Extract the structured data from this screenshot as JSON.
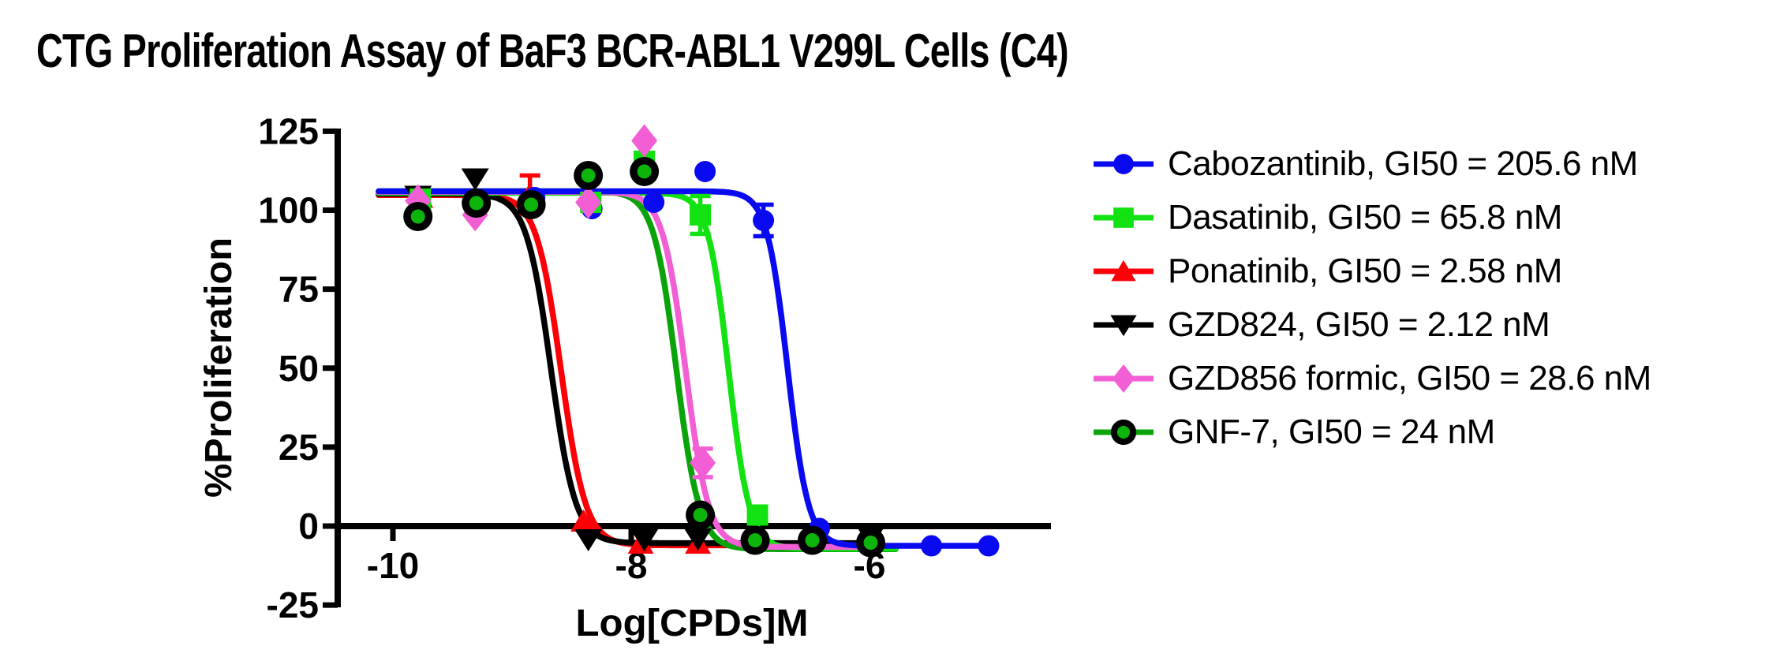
{
  "title": "CTG Proliferation Assay of BaF3 BCR-ABL1 V299L Cells (C4)",
  "legend": {
    "items": [
      {
        "label": "Cabozantinib, GI50 = 205.6 nM"
      },
      {
        "label": "Dasatinib, GI50 = 65.8 nM"
      },
      {
        "label": "Ponatinib, GI50 = 2.58 nM"
      },
      {
        "label": "GZD824, GI50 = 2.12 nM"
      },
      {
        "label": "GZD856 formic, GI50 = 28.6 nM"
      },
      {
        "label": "GNF-7, GI50 = 24 nM"
      }
    ]
  },
  "chart_data": {
    "type": "scatter",
    "subtype": "dose-response curves (sigmoidal fit, GraphPad style)",
    "title": "CTG Proliferation Assay of BaF3 BCR-ABL1 V299L Cells (C4)",
    "xlabel": "Log[CPDs]M",
    "ylabel": "%Proliferation",
    "xlim": [
      -10.45,
      -4.45
    ],
    "ylim": [
      -25,
      125
    ],
    "xticks": [
      -10,
      -8,
      -6
    ],
    "yticks": [
      125,
      100,
      75,
      50,
      25,
      0,
      -25
    ],
    "grid": false,
    "legend_position": "right",
    "axis_color": "#000000",
    "series": [
      {
        "name": "Ponatinib",
        "gi50_nM": 2.58,
        "color": "#fb0007",
        "marker": "triangle-up",
        "fit": {
          "top": 104.8,
          "bottom": -6.1,
          "loggi50": -8.589,
          "hill": 4.2,
          "xstart_log": -10.12,
          "xend_log": -5.89
        },
        "points": [
          {
            "x": -9.77,
            "y": 104
          },
          {
            "x": -8.85,
            "y": 105,
            "err": 6
          },
          {
            "x": -8.4,
            "y": 1.5
          },
          {
            "x": -7.92,
            "y": -5.5
          },
          {
            "x": -7.44,
            "y": -5.5
          }
        ]
      },
      {
        "name": "GZD824",
        "gi50_nM": 2.12,
        "color": "#000000",
        "marker": "triangle-down",
        "fit": {
          "top": 105.2,
          "bottom": -5.4,
          "loggi50": -8.674,
          "hill": 4.2,
          "xstart_log": -10.12,
          "xend_log": -5.96
        },
        "points": [
          {
            "x": -9.79,
            "y": 104.5
          },
          {
            "x": -9.31,
            "y": 110
          },
          {
            "x": -8.36,
            "y": -4.25
          },
          {
            "x": -7.89,
            "y": -4.25
          },
          {
            "x": -7.44,
            "y": -4
          },
          {
            "x": -5.99,
            "y": -3.5
          }
        ]
      },
      {
        "name": "GNF-7",
        "gi50_nM": 24,
        "color": "#0aa30a",
        "marker": "ring-circle",
        "marker_ring_color": "#000000",
        "marker_core_color": "#0cb40c",
        "fit": {
          "top": 106,
          "bottom": -7.3,
          "loggi50": -7.62,
          "hill": 4.5,
          "xstart_log": -10.12,
          "xend_log": -5.78
        },
        "points": [
          {
            "x": -9.79,
            "y": 98
          },
          {
            "x": -9.3,
            "y": 102.25
          },
          {
            "x": -8.84,
            "y": 101.75
          },
          {
            "x": -8.36,
            "y": 111
          },
          {
            "x": -7.89,
            "y": 112.25
          },
          {
            "x": -7.42,
            "y": 3.5
          },
          {
            "x": -6.96,
            "y": -4.5
          },
          {
            "x": -6.48,
            "y": -4.5
          },
          {
            "x": -5.99,
            "y": -5.25
          }
        ]
      },
      {
        "name": "Dasatinib",
        "gi50_nM": 65.8,
        "color": "#12e112",
        "marker": "square",
        "fit": {
          "top": 105.5,
          "bottom": -7.1,
          "loggi50": -7.182,
          "hill": 5,
          "xstart_log": -10.12,
          "xend_log": -5.78
        },
        "points": [
          {
            "x": -9.77,
            "y": 103.5
          },
          {
            "x": -8.34,
            "y": 102.5
          },
          {
            "x": -7.89,
            "y": 115.5
          },
          {
            "x": -7.42,
            "y": 98.5,
            "err": 6
          },
          {
            "x": -6.94,
            "y": 3.5
          }
        ]
      },
      {
        "name": "GZD856 formic",
        "gi50_nM": 28.6,
        "color": "#f25fd5",
        "marker": "diamond",
        "fit": {
          "top": 105.8,
          "bottom": -6.6,
          "loggi50": -7.544,
          "hill": 4.5,
          "xstart_log": -10.12,
          "xend_log": -5.99
        },
        "points": [
          {
            "x": -9.79,
            "y": 103
          },
          {
            "x": -9.31,
            "y": 98.5
          },
          {
            "x": -8.36,
            "y": 102.5
          },
          {
            "x": -7.89,
            "y": 122
          },
          {
            "x": -7.4,
            "y": 20,
            "err": 4.5
          }
        ]
      },
      {
        "name": "Cabozantinib",
        "gi50_nM": 205.6,
        "color": "#0a0af0",
        "marker": "circle",
        "fit": {
          "top": 106,
          "bottom": -6.25,
          "loggi50": -6.687,
          "hill": 5,
          "xstart_log": -10.12,
          "xend_log": -5.0
        },
        "points": [
          {
            "x": -8.81,
            "y": 104
          },
          {
            "x": -8.33,
            "y": 100.5
          },
          {
            "x": -7.81,
            "y": 102.5
          },
          {
            "x": -7.38,
            "y": 112.25
          },
          {
            "x": -6.89,
            "y": 96.75,
            "err": 5
          },
          {
            "x": -6.42,
            "y": -0.75
          },
          {
            "x": -5.48,
            "y": -6.25
          },
          {
            "x": -5.0,
            "y": -6.25
          }
        ]
      }
    ]
  }
}
